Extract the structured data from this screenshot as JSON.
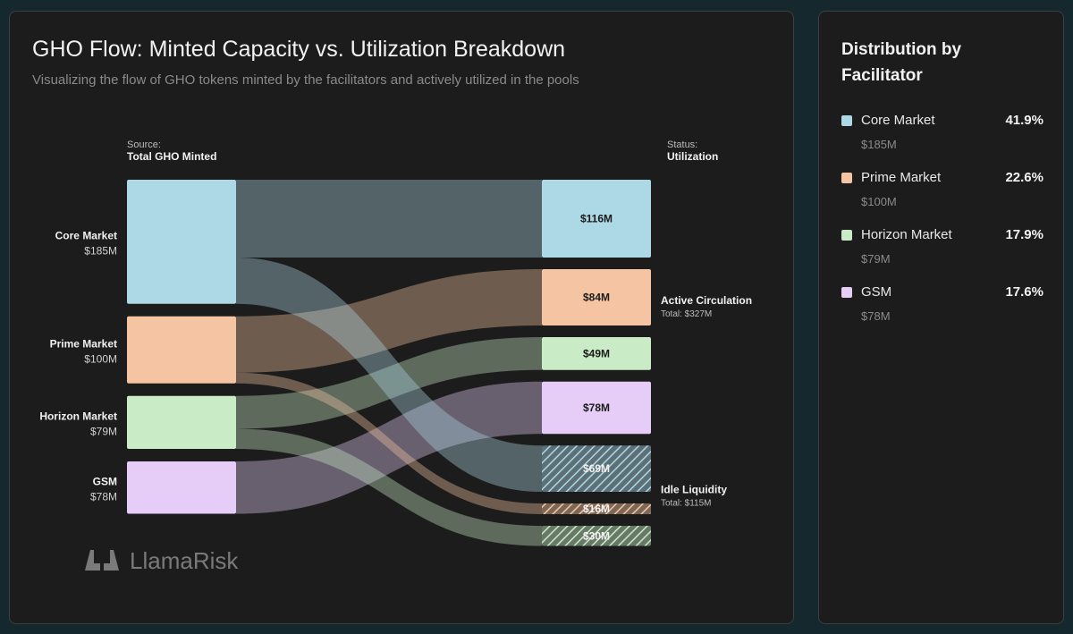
{
  "header": {
    "title": "GHO Flow: Minted Capacity vs. Utilization Breakdown",
    "subtitle": "Visualizing the flow of GHO tokens minted by the facilitators and actively utilized in the pools"
  },
  "sidebar": {
    "title": "Distribution by Facilitator",
    "items": [
      {
        "name": "Core Market",
        "pct": "41.9%",
        "value": "$185M",
        "color": "#add8e6"
      },
      {
        "name": "Prime Market",
        "pct": "22.6%",
        "value": "$100M",
        "color": "#f5c5a3"
      },
      {
        "name": "Horizon Market",
        "pct": "17.9%",
        "value": "$79M",
        "color": "#c9ebc6"
      },
      {
        "name": "GSM",
        "pct": "17.6%",
        "value": "$78M",
        "color": "#e5cdf8"
      }
    ]
  },
  "chart_data": {
    "type": "sankey",
    "source_header": {
      "caption": "Source:",
      "label": "Total GHO Minted"
    },
    "target_header": {
      "caption": "Status:",
      "label": "Utilization"
    },
    "sources": [
      {
        "name": "Core Market",
        "value_label": "$185M",
        "value": 185,
        "color": "#add8e6"
      },
      {
        "name": "Prime Market",
        "value_label": "$100M",
        "value": 100,
        "color": "#f5c5a3"
      },
      {
        "name": "Horizon Market",
        "value_label": "$79M",
        "value": 79,
        "color": "#c9ebc6"
      },
      {
        "name": "GSM",
        "value_label": "$78M",
        "value": 78,
        "color": "#e5cdf8"
      }
    ],
    "targets": [
      {
        "label": "$116M",
        "value": 116,
        "source": "Core Market",
        "status": "Active Circulation",
        "color": "#add8e6",
        "hatched": false
      },
      {
        "label": "$84M",
        "value": 84,
        "source": "Prime Market",
        "status": "Active Circulation",
        "color": "#f5c5a3",
        "hatched": false
      },
      {
        "label": "$49M",
        "value": 49,
        "source": "Horizon Market",
        "status": "Active Circulation",
        "color": "#c9ebc6",
        "hatched": false
      },
      {
        "label": "$78M",
        "value": 78,
        "source": "GSM",
        "status": "Active Circulation",
        "color": "#e5cdf8",
        "hatched": false
      },
      {
        "label": "$69M",
        "value": 69,
        "source": "Core Market",
        "status": "Idle Liquidity",
        "color": "#add8e6",
        "hatched": true
      },
      {
        "label": "$16M",
        "value": 16,
        "source": "Prime Market",
        "status": "Idle Liquidity",
        "color": "#f5c5a3",
        "hatched": true
      },
      {
        "label": "$30M",
        "value": 30,
        "source": "Horizon Market",
        "status": "Idle Liquidity",
        "color": "#c9ebc6",
        "hatched": true
      }
    ],
    "groups": [
      {
        "name": "Active Circulation",
        "total_label": "Total: $327M"
      },
      {
        "name": "Idle Liquidity",
        "total_label": "Total: $115M"
      }
    ]
  },
  "brand": {
    "logo_text": "LlamaRisk"
  }
}
